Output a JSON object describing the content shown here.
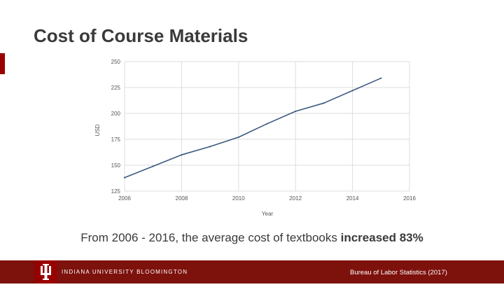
{
  "slide": {
    "title": "Cost of Course Materials",
    "caption_prefix": "From 2006 - 2016, the average cost of textbooks ",
    "caption_emphasis": "increased 83%"
  },
  "footer": {
    "university": "INDIANA UNIVERSITY BLOOMINGTON",
    "source": "Bureau of Labor Statistics (2017)"
  },
  "colors": {
    "line": "#3d5a80",
    "grid": "#dddddd",
    "brand_crimson": "#990000",
    "footer_bar": "#7d110c"
  },
  "chart_data": {
    "type": "line",
    "xlabel": "Year",
    "ylabel": "USD",
    "xlim": [
      2006,
      2016
    ],
    "ylim": [
      125,
      250
    ],
    "xticks": [
      "2006",
      "2008",
      "2010",
      "2012",
      "2014",
      "2016"
    ],
    "yticks": [
      "125",
      "150",
      "175",
      "200",
      "225",
      "250"
    ],
    "grid": true,
    "series": [
      {
        "x": [
          2006,
          2007,
          2008,
          2009,
          2010,
          2011,
          2012,
          2013,
          2014,
          2015
        ],
        "y": [
          138,
          149,
          160,
          168,
          177,
          190,
          202,
          210,
          222,
          234
        ]
      }
    ]
  }
}
